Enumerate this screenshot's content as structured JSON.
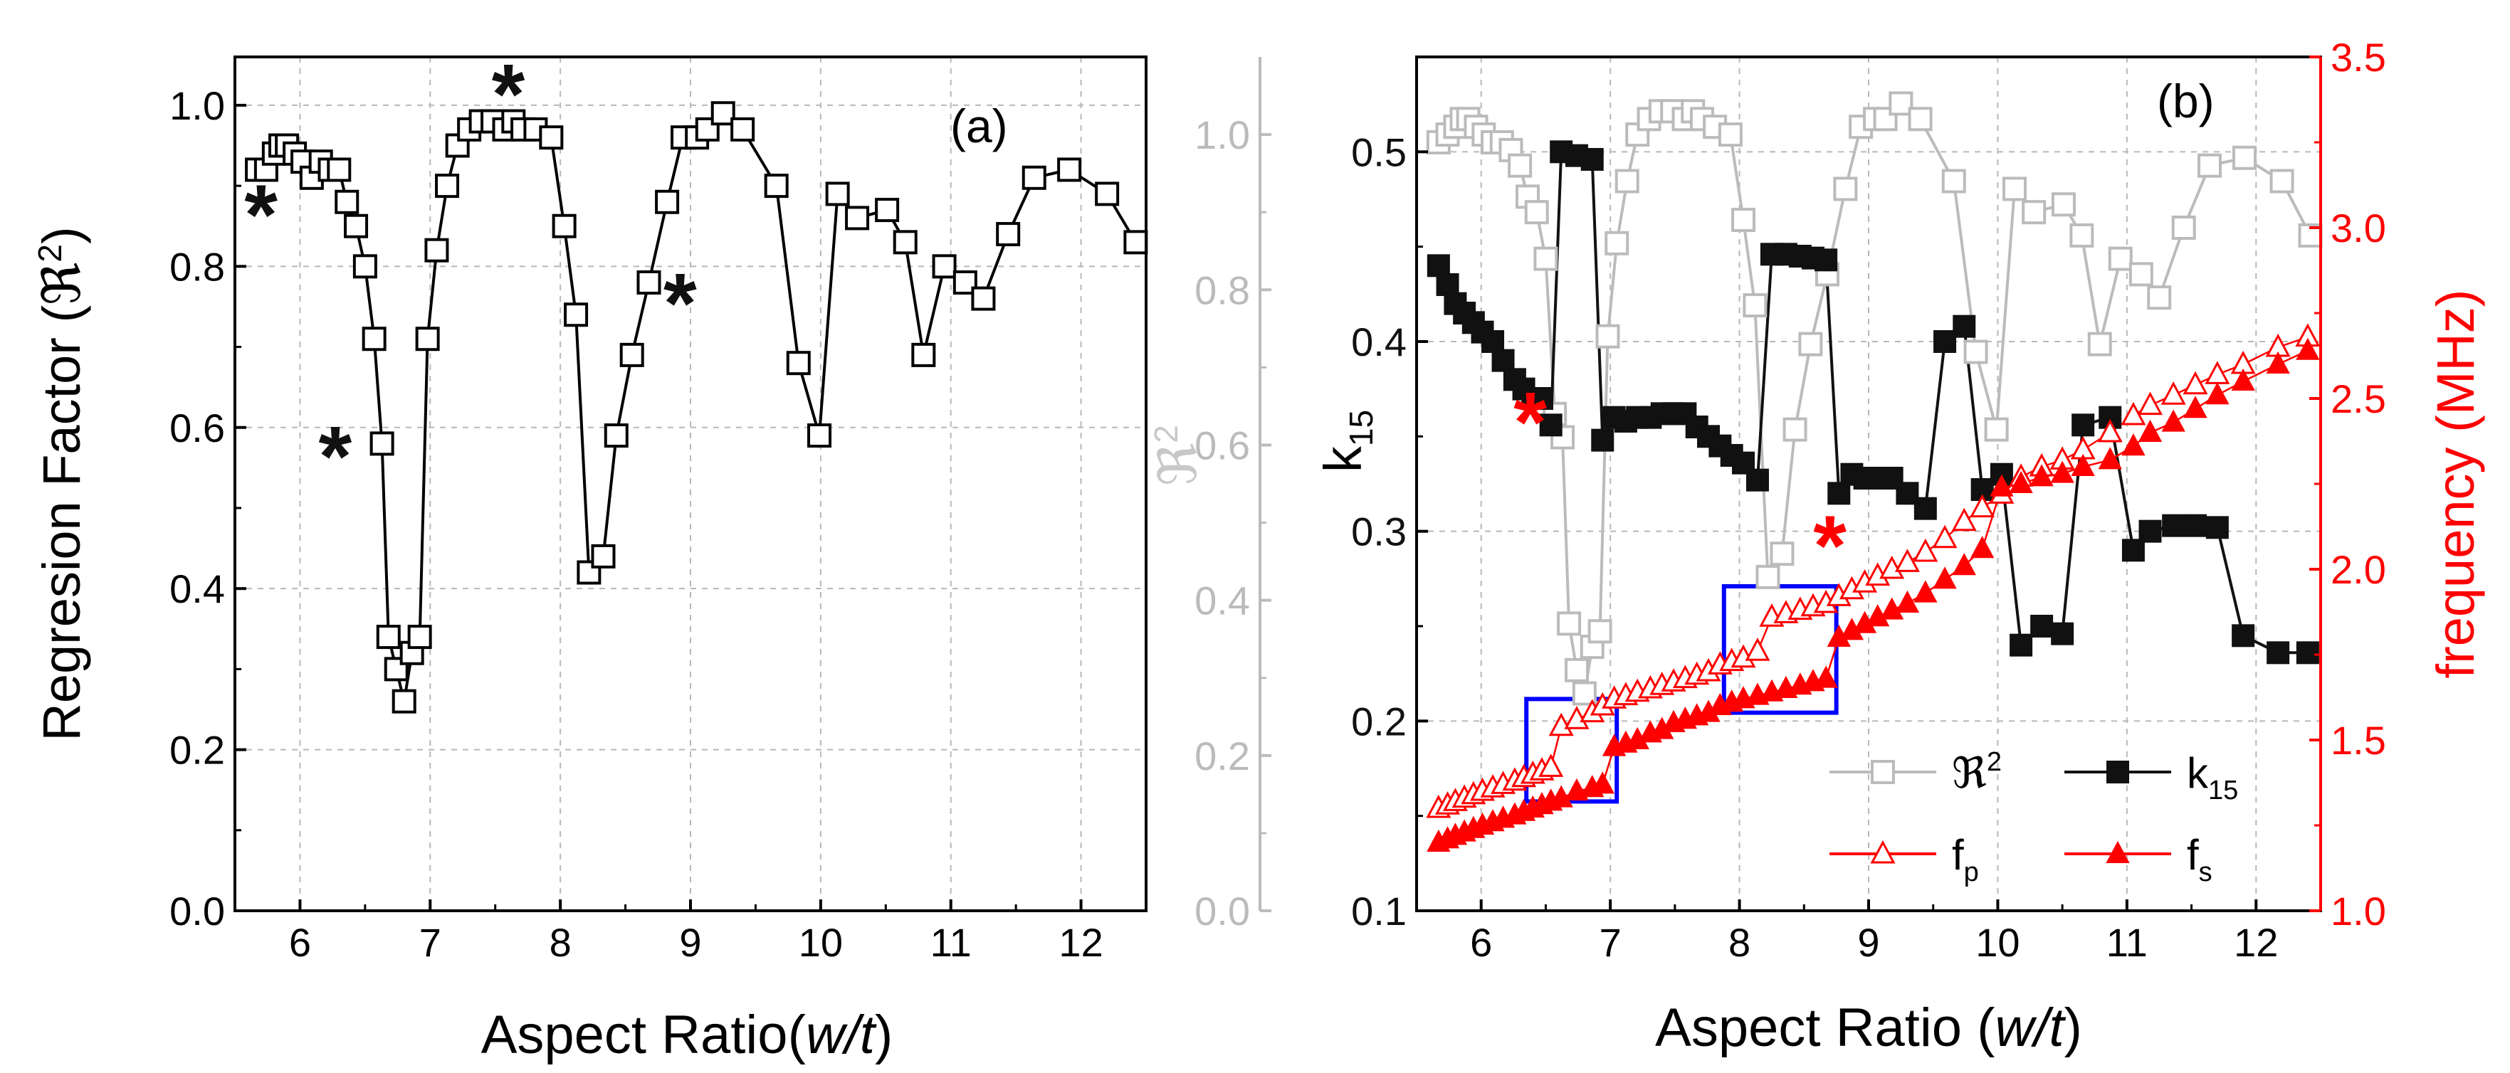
{
  "chart_data": [
    {
      "type": "scatter",
      "panel_label": "(a)",
      "xlabel_pre": "Aspect Ratio(",
      "xlabel_italic": "w/t",
      "xlabel_post": ")",
      "ylabel_pre": "Regresion Factor (",
      "ylabel_sym": "ℜ",
      "ylabel_sup": "2",
      "ylabel_post": ")",
      "xlim": [
        5.5,
        12.5
      ],
      "ylim": [
        0.0,
        1.06
      ],
      "xticks": [
        "6",
        "7",
        "8",
        "9",
        "10",
        "11",
        "12"
      ],
      "xtick_values": [
        6,
        7,
        8,
        9,
        10,
        11,
        12
      ],
      "yticks": [
        "0.0",
        "0.2",
        "0.4",
        "0.6",
        "0.8",
        "1.0"
      ],
      "ytick_values": [
        0.0,
        0.2,
        0.4,
        0.6,
        0.8,
        1.0
      ],
      "grid": "dashed",
      "series": [
        {
          "name": "R2",
          "x": [
            5.67,
            5.74,
            5.8,
            5.85,
            5.9,
            5.96,
            6.02,
            6.09,
            6.16,
            6.23,
            6.3,
            6.36,
            6.43,
            6.5,
            6.57,
            6.63,
            6.68,
            6.74,
            6.8,
            6.86,
            6.92,
            6.98,
            7.05,
            7.13,
            7.21,
            7.3,
            7.39,
            7.48,
            7.57,
            7.64,
            7.71,
            7.81,
            7.93,
            8.03,
            8.12,
            8.22,
            8.33,
            8.43,
            8.55,
            8.68,
            8.82,
            8.94,
            9.05,
            9.13,
            9.25,
            9.4,
            9.66,
            9.83,
            9.99,
            10.13,
            10.28,
            10.51,
            10.65,
            10.79,
            10.95,
            11.11,
            11.25,
            11.44,
            11.64,
            11.91,
            12.2,
            12.42
          ],
          "y": [
            0.92,
            0.92,
            0.94,
            0.95,
            0.95,
            0.94,
            0.93,
            0.91,
            0.93,
            0.92,
            0.92,
            0.88,
            0.85,
            0.8,
            0.71,
            0.58,
            0.34,
            0.3,
            0.26,
            0.32,
            0.34,
            0.71,
            0.82,
            0.9,
            0.95,
            0.97,
            0.98,
            0.98,
            0.97,
            0.98,
            0.97,
            0.97,
            0.96,
            0.85,
            0.74,
            0.42,
            0.44,
            0.59,
            0.69,
            0.78,
            0.88,
            0.96,
            0.96,
            0.97,
            0.99,
            0.97,
            0.9,
            0.68,
            0.59,
            0.89,
            0.86,
            0.87,
            0.83,
            0.69,
            0.8,
            0.78,
            0.76,
            0.84,
            0.91,
            0.92,
            0.89,
            0.83
          ]
        }
      ],
      "asterisks": [
        {
          "x": 5.7,
          "y": 0.87
        },
        {
          "x": 6.27,
          "y": 0.57
        },
        {
          "x": 7.6,
          "y": 1.02
        },
        {
          "x": 8.92,
          "y": 0.76
        }
      ],
      "asterisk_text": "*",
      "asterisk_color": "#111111"
    },
    {
      "type": "scatter",
      "panel_label": "(b)",
      "xlabel_pre": "Aspect Ratio (",
      "xlabel_italic": "w/t",
      "xlabel_post": ")",
      "xlim": [
        5.5,
        12.5
      ],
      "xticks": [
        "6",
        "7",
        "8",
        "9",
        "10",
        "11",
        "12"
      ],
      "xtick_values": [
        6,
        7,
        8,
        9,
        10,
        11,
        12
      ],
      "grid": "dashed",
      "axes": {
        "k15": {
          "label": "k",
          "label_sub": "15",
          "ylim": [
            0.1,
            0.55
          ],
          "yticks": [
            "0.1",
            "0.2",
            "0.3",
            "0.4",
            "0.5"
          ],
          "ytick_values": [
            0.1,
            0.2,
            0.3,
            0.4,
            0.5
          ],
          "color": "#111111"
        },
        "r2": {
          "label": "ℜ",
          "label_sup": "2",
          "ylim": [
            0.0,
            1.1
          ],
          "yticks": [
            "0.0",
            "0.2",
            "0.4",
            "0.6",
            "0.8",
            "1.0"
          ],
          "ytick_values": [
            0.0,
            0.2,
            0.4,
            0.6,
            0.8,
            1.0
          ],
          "color": "#bbbbbb"
        },
        "freq": {
          "label": "frequency (MHz)",
          "ylim": [
            1.0,
            3.5
          ],
          "yticks": [
            "1.0",
            "1.5",
            "2.0",
            "2.5",
            "3.0",
            "3.5"
          ],
          "ytick_values": [
            1.0,
            1.5,
            2.0,
            2.5,
            3.0,
            3.5
          ],
          "color": "#ff0000"
        }
      },
      "series": [
        {
          "name": "R2",
          "legend": "ℜ",
          "legend_sup": "2",
          "axis": "r2",
          "color": "#bbbbbb",
          "marker": "open-square",
          "x": [
            5.67,
            5.74,
            5.8,
            5.85,
            5.9,
            5.96,
            6.02,
            6.09,
            6.16,
            6.23,
            6.3,
            6.36,
            6.43,
            6.5,
            6.57,
            6.63,
            6.68,
            6.74,
            6.8,
            6.86,
            6.92,
            6.98,
            7.05,
            7.13,
            7.21,
            7.3,
            7.39,
            7.48,
            7.57,
            7.64,
            7.71,
            7.81,
            7.93,
            8.03,
            8.12,
            8.22,
            8.33,
            8.43,
            8.55,
            8.68,
            8.82,
            8.94,
            9.05,
            9.13,
            9.25,
            9.4,
            9.66,
            9.83,
            9.99,
            10.13,
            10.28,
            10.51,
            10.65,
            10.79,
            10.95,
            11.11,
            11.25,
            11.44,
            11.64,
            11.91,
            12.2,
            12.42
          ],
          "y": [
            0.99,
            1.0,
            1.01,
            1.02,
            1.02,
            1.01,
            1.0,
            0.99,
            0.99,
            0.98,
            0.96,
            0.92,
            0.9,
            0.84,
            0.64,
            0.61,
            0.37,
            0.31,
            0.28,
            0.34,
            0.36,
            0.74,
            0.86,
            0.94,
            1.0,
            1.02,
            1.03,
            1.03,
            1.02,
            1.03,
            1.02,
            1.01,
            1.0,
            0.89,
            0.78,
            0.43,
            0.46,
            0.62,
            0.73,
            0.82,
            0.93,
            1.01,
            1.02,
            1.02,
            1.04,
            1.02,
            0.94,
            0.72,
            0.62,
            0.93,
            0.9,
            0.91,
            0.87,
            0.73,
            0.84,
            0.82,
            0.79,
            0.88,
            0.96,
            0.97,
            0.94,
            0.87
          ]
        },
        {
          "name": "k15",
          "legend": "k",
          "legend_sub": "15",
          "axis": "k15",
          "color": "#111111",
          "marker": "filled-square",
          "x": [
            5.67,
            5.74,
            5.8,
            5.87,
            5.94,
            6.01,
            6.09,
            6.17,
            6.26,
            6.33,
            6.4,
            6.47,
            6.54,
            6.62,
            6.74,
            6.86,
            6.94,
            7.03,
            7.12,
            7.21,
            7.31,
            7.4,
            7.49,
            7.58,
            7.67,
            7.76,
            7.85,
            7.94,
            8.03,
            8.14,
            8.25,
            8.36,
            8.47,
            8.57,
            8.67,
            8.77,
            8.87,
            8.97,
            9.07,
            9.18,
            9.3,
            9.44,
            9.59,
            9.74,
            9.88,
            10.03,
            10.18,
            10.34,
            10.5,
            10.66,
            10.87,
            11.05,
            11.18,
            11.36,
            11.53,
            11.7,
            11.9,
            12.17,
            12.4
          ],
          "y": [
            0.44,
            0.43,
            0.42,
            0.415,
            0.41,
            0.405,
            0.4,
            0.39,
            0.38,
            0.375,
            0.37,
            0.37,
            0.356,
            0.5,
            0.498,
            0.496,
            0.348,
            0.36,
            0.358,
            0.36,
            0.36,
            0.362,
            0.362,
            0.362,
            0.355,
            0.35,
            0.345,
            0.34,
            0.336,
            0.327,
            0.446,
            0.446,
            0.445,
            0.444,
            0.443,
            0.32,
            0.33,
            0.328,
            0.328,
            0.328,
            0.32,
            0.312,
            0.4,
            0.408,
            0.322,
            0.33,
            0.24,
            0.25,
            0.246,
            0.356,
            0.36,
            0.29,
            0.3,
            0.303,
            0.303,
            0.302,
            0.245,
            0.236,
            0.236
          ]
        },
        {
          "name": "fp",
          "legend": "f",
          "legend_sub": "p",
          "axis": "freq",
          "color": "#ff0000",
          "marker": "open-triangle",
          "x": [
            5.67,
            5.74,
            5.8,
            5.87,
            5.94,
            6.01,
            6.09,
            6.17,
            6.26,
            6.33,
            6.4,
            6.47,
            6.54,
            6.62,
            6.74,
            6.86,
            6.94,
            7.03,
            7.12,
            7.21,
            7.31,
            7.4,
            7.49,
            7.58,
            7.67,
            7.76,
            7.85,
            7.94,
            8.03,
            8.14,
            8.25,
            8.36,
            8.47,
            8.57,
            8.67,
            8.77,
            8.87,
            8.97,
            9.07,
            9.18,
            9.3,
            9.44,
            9.59,
            9.74,
            9.88,
            10.03,
            10.18,
            10.34,
            10.5,
            10.66,
            10.87,
            11.05,
            11.18,
            11.36,
            11.53,
            11.7,
            11.9,
            12.17,
            12.4
          ],
          "y": [
            1.3,
            1.31,
            1.32,
            1.33,
            1.34,
            1.35,
            1.36,
            1.37,
            1.38,
            1.39,
            1.4,
            1.41,
            1.42,
            1.54,
            1.56,
            1.58,
            1.6,
            1.62,
            1.63,
            1.64,
            1.65,
            1.66,
            1.67,
            1.68,
            1.69,
            1.7,
            1.72,
            1.73,
            1.74,
            1.76,
            1.86,
            1.87,
            1.88,
            1.89,
            1.9,
            1.92,
            1.94,
            1.96,
            1.98,
            2.0,
            2.02,
            2.05,
            2.09,
            2.14,
            2.18,
            2.22,
            2.27,
            2.3,
            2.32,
            2.35,
            2.4,
            2.45,
            2.48,
            2.51,
            2.54,
            2.57,
            2.6,
            2.65,
            2.68
          ]
        },
        {
          "name": "fs",
          "legend": "f",
          "legend_sub": "s",
          "axis": "freq",
          "color": "#ff0000",
          "marker": "filled-triangle",
          "x": [
            5.67,
            5.74,
            5.8,
            5.87,
            5.94,
            6.01,
            6.09,
            6.17,
            6.26,
            6.33,
            6.4,
            6.47,
            6.54,
            6.62,
            6.74,
            6.86,
            6.94,
            7.03,
            7.12,
            7.21,
            7.31,
            7.4,
            7.49,
            7.58,
            7.67,
            7.76,
            7.85,
            7.94,
            8.03,
            8.14,
            8.25,
            8.36,
            8.47,
            8.57,
            8.67,
            8.77,
            8.87,
            8.97,
            9.07,
            9.18,
            9.3,
            9.44,
            9.59,
            9.74,
            9.88,
            10.03,
            10.18,
            10.34,
            10.5,
            10.66,
            10.87,
            11.05,
            11.18,
            11.36,
            11.53,
            11.7,
            11.9,
            12.17,
            12.4
          ],
          "y": [
            1.2,
            1.21,
            1.22,
            1.23,
            1.24,
            1.25,
            1.26,
            1.27,
            1.28,
            1.29,
            1.3,
            1.31,
            1.32,
            1.33,
            1.35,
            1.36,
            1.37,
            1.48,
            1.49,
            1.5,
            1.52,
            1.53,
            1.55,
            1.56,
            1.57,
            1.58,
            1.6,
            1.61,
            1.62,
            1.63,
            1.64,
            1.65,
            1.66,
            1.67,
            1.68,
            1.8,
            1.82,
            1.84,
            1.86,
            1.88,
            1.9,
            1.93,
            1.97,
            2.01,
            2.06,
            2.24,
            2.25,
            2.27,
            2.28,
            2.3,
            2.32,
            2.36,
            2.4,
            2.43,
            2.47,
            2.51,
            2.55,
            2.6,
            2.64
          ]
        }
      ],
      "asterisks": [
        {
          "x": 6.38,
          "y": 0.36
        },
        {
          "x": 8.7,
          "y": 0.295
        }
      ],
      "asterisk_text": "*",
      "asterisk_color": "#ff0000",
      "highlight_boxes": [
        {
          "x0": 6.35,
          "x1": 7.05,
          "y0": 1.32,
          "y1": 1.62
        },
        {
          "x0": 7.88,
          "x1": 8.75,
          "y0": 1.58,
          "y1": 1.95
        }
      ],
      "highlight_color": "#0000ff"
    }
  ]
}
